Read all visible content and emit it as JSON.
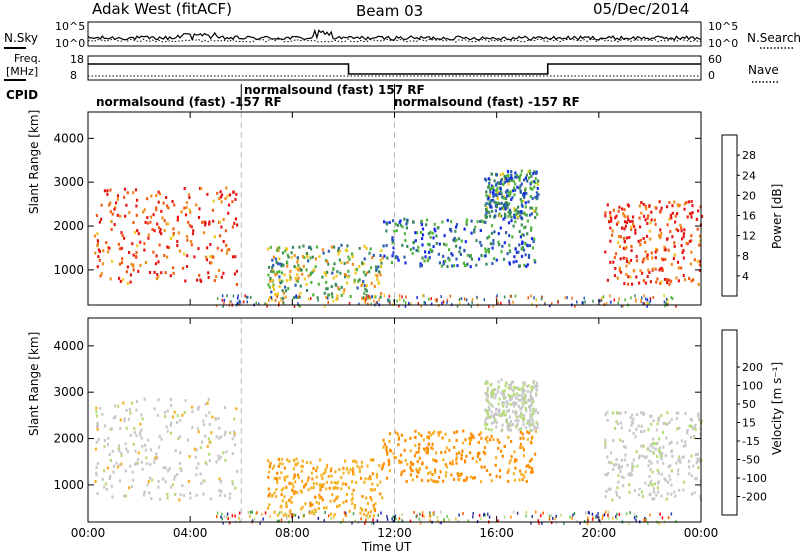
{
  "header": {
    "station": "Adak West (fitACF)",
    "beam": "Beam 03",
    "date": "05/Dec/2014"
  },
  "strips": {
    "nsky": {
      "label": "N.Sky",
      "ticks": [
        "10^5",
        "10^0"
      ]
    },
    "nsearch": {
      "label": "N.Search",
      "ticks": [
        "10^5",
        "10^0"
      ]
    },
    "freq": {
      "label_top": "Freq.",
      "label_unit": "[MHz]",
      "ticks": [
        "18",
        "8"
      ]
    },
    "nave": {
      "label": "Nave",
      "ticks": [
        "60",
        "0"
      ]
    },
    "cpid": {
      "label": "CPID",
      "segments": [
        {
          "text": "normalsound (fast) -157 RF",
          "start_h": 0,
          "end_h": 6
        },
        {
          "text": "normalsound (fast) 157 RF",
          "start_h": 6,
          "end_h": 12
        },
        {
          "text": "normalsound (fast) -157 RF",
          "start_h": 12,
          "end_h": 24
        }
      ]
    }
  },
  "colors": {
    "power": [
      "#1428e6",
      "#2a5ab4",
      "#3c8a5a",
      "#50b43c",
      "#f0c820",
      "#f08c1e",
      "#f05a14",
      "#e61414"
    ],
    "velocity": [
      "#ff0000",
      "#ff5500",
      "#ff8c00",
      "#f5b428",
      "#c8c8c8",
      "#b4dc78",
      "#64c850",
      "#3c9650",
      "#283c96",
      "#1e1eb4"
    ]
  },
  "chart_data": [
    {
      "type": "heatmap",
      "panel": "power",
      "xlabel": "",
      "ylabel": "Slant Range [km]",
      "xlim": [
        0,
        24
      ],
      "ylim": [
        200,
        4600
      ],
      "x_ticks": [
        "00:00",
        "04:00",
        "08:00",
        "12:00",
        "16:00",
        "20:00",
        "00:00"
      ],
      "y_ticks": [
        1000,
        2000,
        3000,
        4000
      ],
      "colorbar": {
        "label": "Power [dB]",
        "ticks": [
          4,
          8,
          12,
          16,
          20,
          24,
          28
        ]
      },
      "regions": [
        {
          "t": [
            0.2,
            5.8
          ],
          "r": [
            700,
            2900
          ],
          "level": 0.85
        },
        {
          "t": [
            7.0,
            11.5
          ],
          "r": [
            350,
            1600
          ],
          "level": 0.45
        },
        {
          "t": [
            11.5,
            17.5
          ],
          "r": [
            1100,
            2200
          ],
          "level": 0.25
        },
        {
          "t": [
            15.5,
            17.6
          ],
          "r": [
            2200,
            3300
          ],
          "level": 0.3
        },
        {
          "t": [
            20.2,
            24.0
          ],
          "r": [
            700,
            2600
          ],
          "level": 0.85
        }
      ]
    },
    {
      "type": "heatmap",
      "panel": "velocity",
      "xlabel": "Time UT",
      "ylabel": "Slant Range [km]",
      "xlim": [
        0,
        24
      ],
      "ylim": [
        200,
        4600
      ],
      "x_ticks": [
        "00:00",
        "04:00",
        "08:00",
        "12:00",
        "16:00",
        "20:00",
        "00:00"
      ],
      "y_ticks": [
        1000,
        2000,
        3000,
        4000
      ],
      "colorbar": {
        "label": "Velocity [m s⁻¹]",
        "ticks": [
          -200,
          -100,
          -50,
          -15,
          15,
          50,
          100,
          200
        ]
      },
      "regions": [
        {
          "t": [
            0.2,
            5.8
          ],
          "r": [
            700,
            2900
          ],
          "velocity": 0
        },
        {
          "t": [
            7.0,
            11.5
          ],
          "r": [
            350,
            1600
          ],
          "velocity": -40
        },
        {
          "t": [
            11.5,
            17.5
          ],
          "r": [
            1100,
            2200
          ],
          "velocity": -60
        },
        {
          "t": [
            15.5,
            17.6
          ],
          "r": [
            2200,
            3300
          ],
          "velocity": 10
        },
        {
          "t": [
            20.2,
            24.0
          ],
          "r": [
            700,
            2600
          ],
          "velocity": 5
        }
      ]
    }
  ]
}
